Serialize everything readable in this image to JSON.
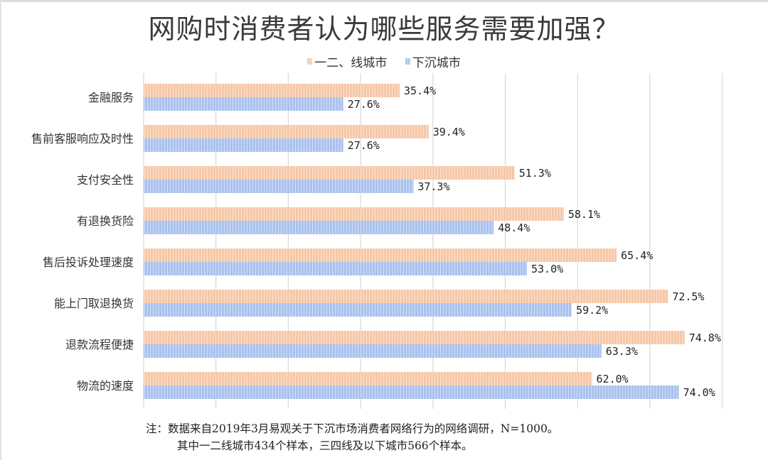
{
  "chart_data": {
    "type": "bar",
    "orientation": "horizontal",
    "title": "网购时消费者认为哪些服务需要加强？",
    "xlabel": "",
    "ylabel": "",
    "xlim": [
      0,
      80
    ],
    "grid": true,
    "grid_step": 10,
    "legend_position": "top",
    "categories": [
      "金融服务",
      "售前客服响应及时性",
      "支付安全性",
      "有退换货险",
      "售后投诉处理速度",
      "能上门取退换货",
      "退款流程便捷",
      "物流的速度"
    ],
    "series": [
      {
        "name": "一二、线城市",
        "color": "#F6C7A6",
        "stripe": "#FBE3D2",
        "values": [
          35.4,
          39.4,
          51.3,
          58.1,
          65.4,
          72.5,
          74.8,
          62.0
        ],
        "labels": [
          "35.4%",
          "39.4%",
          "51.3%",
          "58.1%",
          "65.4%",
          "72.5%",
          "74.8%",
          "62.0%"
        ]
      },
      {
        "name": "下沉城市",
        "color": "#A9C1EE",
        "stripe": "#D3E0F7",
        "values": [
          27.6,
          27.6,
          37.3,
          48.4,
          53.0,
          59.2,
          63.3,
          74.0
        ],
        "labels": [
          "27.6%",
          "27.6%",
          "37.3%",
          "48.4%",
          "53.0%",
          "59.2%",
          "63.3%",
          "74.0%"
        ]
      }
    ]
  },
  "note": {
    "line1": "注：数据来自2019年3月易观关于下沉市场消费者网络行为的网络调研，N=1000。",
    "line2": "其中一二线城市434个样本，三四线及以下城市566个样本。"
  }
}
